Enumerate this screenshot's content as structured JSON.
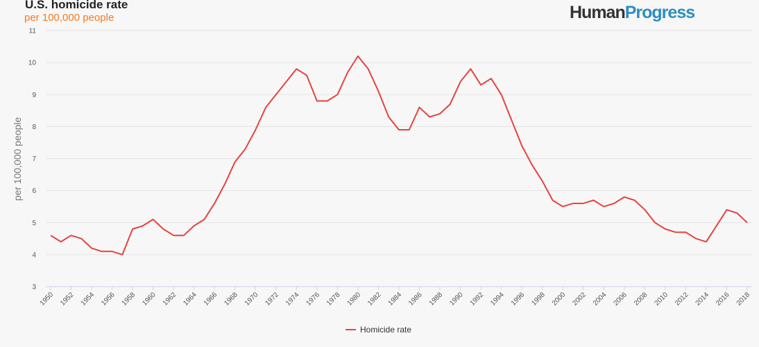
{
  "title": "U.S. homicide rate",
  "subtitle": "per 100,000 people",
  "logo": {
    "part1": "Human",
    "part2": "Progress"
  },
  "colors": {
    "series": "#e8413c",
    "subtitle": "#f47b20",
    "logo_accent": "#2b8ec4"
  },
  "chart_data": {
    "type": "line",
    "title": "U.S. homicide rate",
    "subtitle": "per 100,000 people",
    "xlabel": "",
    "ylabel": "per 100,000 people",
    "ylim": [
      3,
      11
    ],
    "yticks": [
      3,
      4,
      5,
      6,
      7,
      8,
      9,
      10,
      11
    ],
    "xlim": [
      1950,
      2018
    ],
    "xticks": [
      1950,
      1952,
      1954,
      1956,
      1958,
      1960,
      1962,
      1964,
      1966,
      1968,
      1970,
      1972,
      1974,
      1976,
      1978,
      1980,
      1982,
      1984,
      1986,
      1988,
      1990,
      1992,
      1994,
      1996,
      1998,
      2000,
      2002,
      2004,
      2006,
      2008,
      2010,
      2012,
      2014,
      2016,
      2018
    ],
    "grid": true,
    "legend": "bottom-center",
    "x": [
      1950,
      1951,
      1952,
      1953,
      1954,
      1955,
      1956,
      1957,
      1958,
      1959,
      1960,
      1961,
      1962,
      1963,
      1964,
      1965,
      1966,
      1967,
      1968,
      1969,
      1970,
      1971,
      1972,
      1973,
      1974,
      1975,
      1976,
      1977,
      1978,
      1979,
      1980,
      1981,
      1982,
      1983,
      1984,
      1985,
      1986,
      1987,
      1988,
      1989,
      1990,
      1991,
      1992,
      1993,
      1994,
      1995,
      1996,
      1997,
      1998,
      1999,
      2000,
      2001,
      2002,
      2003,
      2004,
      2005,
      2006,
      2007,
      2008,
      2009,
      2010,
      2011,
      2012,
      2013,
      2014,
      2015,
      2016,
      2017,
      2018
    ],
    "series": [
      {
        "name": "Homicide rate",
        "values": [
          4.6,
          4.4,
          4.6,
          4.5,
          4.2,
          4.1,
          4.1,
          4.0,
          4.8,
          4.9,
          5.1,
          4.8,
          4.6,
          4.6,
          4.9,
          5.1,
          5.6,
          6.2,
          6.9,
          7.3,
          7.9,
          8.6,
          9.0,
          9.4,
          9.8,
          9.6,
          8.8,
          8.8,
          9.0,
          9.7,
          10.2,
          9.8,
          9.1,
          8.3,
          7.9,
          7.9,
          8.6,
          8.3,
          8.4,
          8.7,
          9.4,
          9.8,
          9.3,
          9.5,
          9.0,
          8.2,
          7.4,
          6.8,
          6.3,
          5.7,
          5.5,
          5.6,
          5.6,
          5.7,
          5.5,
          5.6,
          5.8,
          5.7,
          5.4,
          5.0,
          4.8,
          4.7,
          4.7,
          4.5,
          4.4,
          4.9,
          5.4,
          5.3,
          5.0
        ]
      }
    ]
  }
}
